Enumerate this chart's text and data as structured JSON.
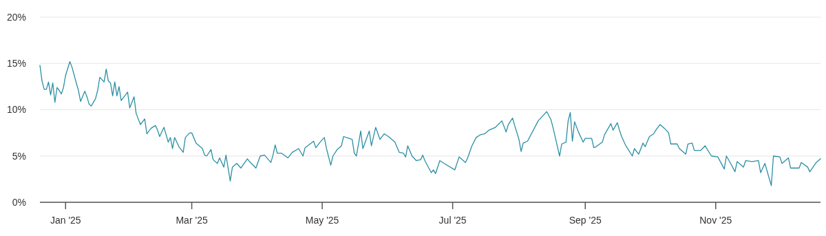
{
  "chart_data": {
    "type": "line",
    "x": [
      "2024-12-20",
      "2024-12-21",
      "2024-12-22",
      "2024-12-23",
      "2024-12-24",
      "2024-12-25",
      "2024-12-26",
      "2024-12-27",
      "2024-12-28",
      "2024-12-29",
      "2024-12-30",
      "2024-12-31",
      "2025-01-01",
      "2025-01-03",
      "2025-01-04",
      "2025-01-06",
      "2025-01-07",
      "2025-01-08",
      "2025-01-10",
      "2025-01-11",
      "2025-01-12",
      "2025-01-13",
      "2025-01-15",
      "2025-01-16",
      "2025-01-17",
      "2025-01-19",
      "2025-01-20",
      "2025-01-21",
      "2025-01-22",
      "2025-01-23",
      "2025-01-24",
      "2025-01-25",
      "2025-01-26",
      "2025-01-27",
      "2025-01-30",
      "2025-01-31",
      "2025-02-02",
      "2025-02-03",
      "2025-02-05",
      "2025-02-07",
      "2025-02-08",
      "2025-02-10",
      "2025-02-12",
      "2025-02-13",
      "2025-02-14",
      "2025-02-16",
      "2025-02-18",
      "2025-02-19",
      "2025-02-20",
      "2025-02-21",
      "2025-02-23",
      "2025-02-25",
      "2025-02-26",
      "2025-02-28",
      "2025-03-01",
      "2025-03-03",
      "2025-03-06",
      "2025-03-07",
      "2025-03-08",
      "2025-03-10",
      "2025-03-11",
      "2025-03-13",
      "2025-03-14",
      "2025-03-16",
      "2025-03-17",
      "2025-03-19",
      "2025-03-20",
      "2025-03-22",
      "2025-03-24",
      "2025-03-27",
      "2025-03-28",
      "2025-03-31",
      "2025-04-02",
      "2025-04-04",
      "2025-04-07",
      "2025-04-08",
      "2025-04-09",
      "2025-04-10",
      "2025-04-12",
      "2025-04-15",
      "2025-04-17",
      "2025-04-20",
      "2025-04-22",
      "2025-04-23",
      "2025-04-27",
      "2025-04-28",
      "2025-04-30",
      "2025-05-02",
      "2025-05-03",
      "2025-05-05",
      "2025-05-06",
      "2025-05-08",
      "2025-05-10",
      "2025-05-11",
      "2025-05-15",
      "2025-05-16",
      "2025-05-17",
      "2025-05-19",
      "2025-05-20",
      "2025-05-23",
      "2025-05-24",
      "2025-05-26",
      "2025-05-28",
      "2025-05-30",
      "2025-06-01",
      "2025-06-04",
      "2025-06-06",
      "2025-06-08",
      "2025-06-09",
      "2025-06-10",
      "2025-06-12",
      "2025-06-14",
      "2025-06-16",
      "2025-06-17",
      "2025-06-18",
      "2025-06-21",
      "2025-06-22",
      "2025-06-23",
      "2025-06-25",
      "2025-06-27",
      "2025-07-02",
      "2025-07-04",
      "2025-07-07",
      "2025-07-08",
      "2025-07-10",
      "2025-07-12",
      "2025-07-14",
      "2025-07-16",
      "2025-07-18",
      "2025-07-21",
      "2025-07-24",
      "2025-07-26",
      "2025-07-27",
      "2025-07-29",
      "2025-07-30",
      "2025-08-01",
      "2025-08-02",
      "2025-08-03",
      "2025-08-05",
      "2025-08-10",
      "2025-08-12",
      "2025-08-14",
      "2025-08-16",
      "2025-08-17",
      "2025-08-18",
      "2025-08-20",
      "2025-08-21",
      "2025-08-23",
      "2025-08-24",
      "2025-08-25",
      "2025-08-26",
      "2025-08-27",
      "2025-08-29",
      "2025-08-31",
      "2025-09-01",
      "2025-09-04",
      "2025-09-05",
      "2025-09-06",
      "2025-09-09",
      "2025-09-10",
      "2025-09-13",
      "2025-09-14",
      "2025-09-16",
      "2025-09-17",
      "2025-09-18",
      "2025-09-20",
      "2025-09-23",
      "2025-09-24",
      "2025-09-26",
      "2025-09-28",
      "2025-09-29",
      "2025-10-01",
      "2025-10-03",
      "2025-10-04",
      "2025-10-06",
      "2025-10-08",
      "2025-10-10",
      "2025-10-11",
      "2025-10-14",
      "2025-10-15",
      "2025-10-18",
      "2025-10-19",
      "2025-10-21",
      "2025-10-22",
      "2025-10-25",
      "2025-10-27",
      "2025-10-30",
      "2025-11-02",
      "2025-11-05",
      "2025-11-06",
      "2025-11-08",
      "2025-11-10",
      "2025-11-11",
      "2025-11-14",
      "2025-11-15",
      "2025-11-18",
      "2025-11-21",
      "2025-11-22",
      "2025-11-24",
      "2025-11-27",
      "2025-11-28",
      "2025-12-01",
      "2025-12-02",
      "2025-12-05",
      "2025-12-06",
      "2025-12-10",
      "2025-12-11",
      "2025-12-14",
      "2025-12-15",
      "2025-12-18",
      "2025-12-20"
    ],
    "series": [
      {
        "color": "#2a8fa3",
        "values": [
          14.8,
          13.1,
          12.2,
          12.2,
          13.0,
          11.6,
          12.9,
          10.8,
          12.4,
          12.1,
          11.7,
          12.4,
          13.7,
          15.2,
          14.6,
          12.9,
          12.1,
          10.9,
          12.0,
          11.4,
          10.6,
          10.4,
          11.2,
          12.1,
          13.5,
          13.0,
          14.4,
          13.1,
          12.9,
          11.5,
          13.0,
          11.5,
          12.5,
          11.0,
          11.9,
          10.2,
          11.4,
          9.6,
          8.4,
          9.0,
          7.4,
          8.0,
          8.3,
          7.8,
          7.1,
          8.1,
          6.5,
          7.0,
          5.8,
          7.0,
          6.0,
          5.4,
          7.0,
          7.5,
          7.5,
          6.4,
          5.8,
          5.1,
          5.0,
          5.7,
          4.6,
          4.2,
          4.8,
          3.8,
          5.1,
          2.3,
          3.8,
          4.2,
          3.7,
          4.7,
          4.4,
          3.7,
          5.0,
          5.1,
          4.3,
          5.1,
          6.2,
          5.3,
          5.3,
          4.8,
          5.4,
          5.8,
          5.0,
          5.9,
          6.6,
          5.9,
          6.5,
          7.0,
          5.8,
          4.0,
          5.0,
          5.7,
          6.1,
          7.1,
          6.8,
          5.3,
          5.0,
          7.7,
          5.8,
          7.7,
          6.1,
          8.1,
          6.8,
          7.4,
          7.1,
          6.5,
          5.4,
          5.3,
          4.9,
          6.1,
          5.0,
          4.5,
          4.6,
          5.1,
          4.5,
          3.2,
          3.5,
          3.1,
          4.5,
          4.2,
          3.5,
          4.9,
          4.3,
          4.8,
          6.1,
          7.0,
          7.3,
          7.4,
          7.8,
          8.1,
          8.8,
          7.6,
          8.4,
          9.1,
          8.3,
          6.8,
          5.5,
          6.4,
          6.6,
          8.8,
          9.3,
          9.8,
          8.9,
          8.0,
          7.0,
          5.0,
          6.3,
          6.5,
          8.8,
          9.7,
          6.6,
          8.7,
          7.5,
          6.5,
          6.9,
          6.9,
          5.9,
          6.0,
          6.5,
          7.3,
          8.5,
          7.8,
          8.6,
          7.8,
          7.1,
          6.1,
          5.0,
          5.8,
          5.2,
          6.4,
          6.0,
          7.1,
          7.4,
          7.8,
          8.4,
          8.0,
          7.5,
          6.3,
          6.3,
          5.8,
          5.2,
          6.3,
          6.4,
          5.6,
          5.6,
          6.1,
          5.0,
          4.9,
          3.6,
          5.0,
          4.2,
          3.3,
          4.4,
          3.8,
          4.5,
          4.4,
          4.5,
          3.2,
          4.2,
          1.8,
          5.0,
          4.9,
          4.2,
          4.8,
          3.7,
          3.7,
          4.3,
          3.8,
          3.3,
          4.3,
          4.7
        ]
      }
    ],
    "xlim": [
      "2024-12-20",
      "2025-12-20"
    ],
    "xticks": [
      {
        "value": "2025-01-01",
        "label": "Jan '25"
      },
      {
        "value": "2025-03-01",
        "label": "Mar '25"
      },
      {
        "value": "2025-05-01",
        "label": "May '25"
      },
      {
        "value": "2025-07-01",
        "label": "Jul '25"
      },
      {
        "value": "2025-09-01",
        "label": "Sep '25"
      },
      {
        "value": "2025-11-01",
        "label": "Nov '25"
      }
    ],
    "ylim": [
      0,
      20
    ],
    "yticks": [
      {
        "value": 0,
        "label": "0%"
      },
      {
        "value": 5,
        "label": "5%"
      },
      {
        "value": 10,
        "label": "10%"
      },
      {
        "value": 15,
        "label": "15%"
      },
      {
        "value": 20,
        "label": "20%"
      }
    ],
    "grid": "y",
    "marker": "none",
    "line_style": "solid"
  }
}
